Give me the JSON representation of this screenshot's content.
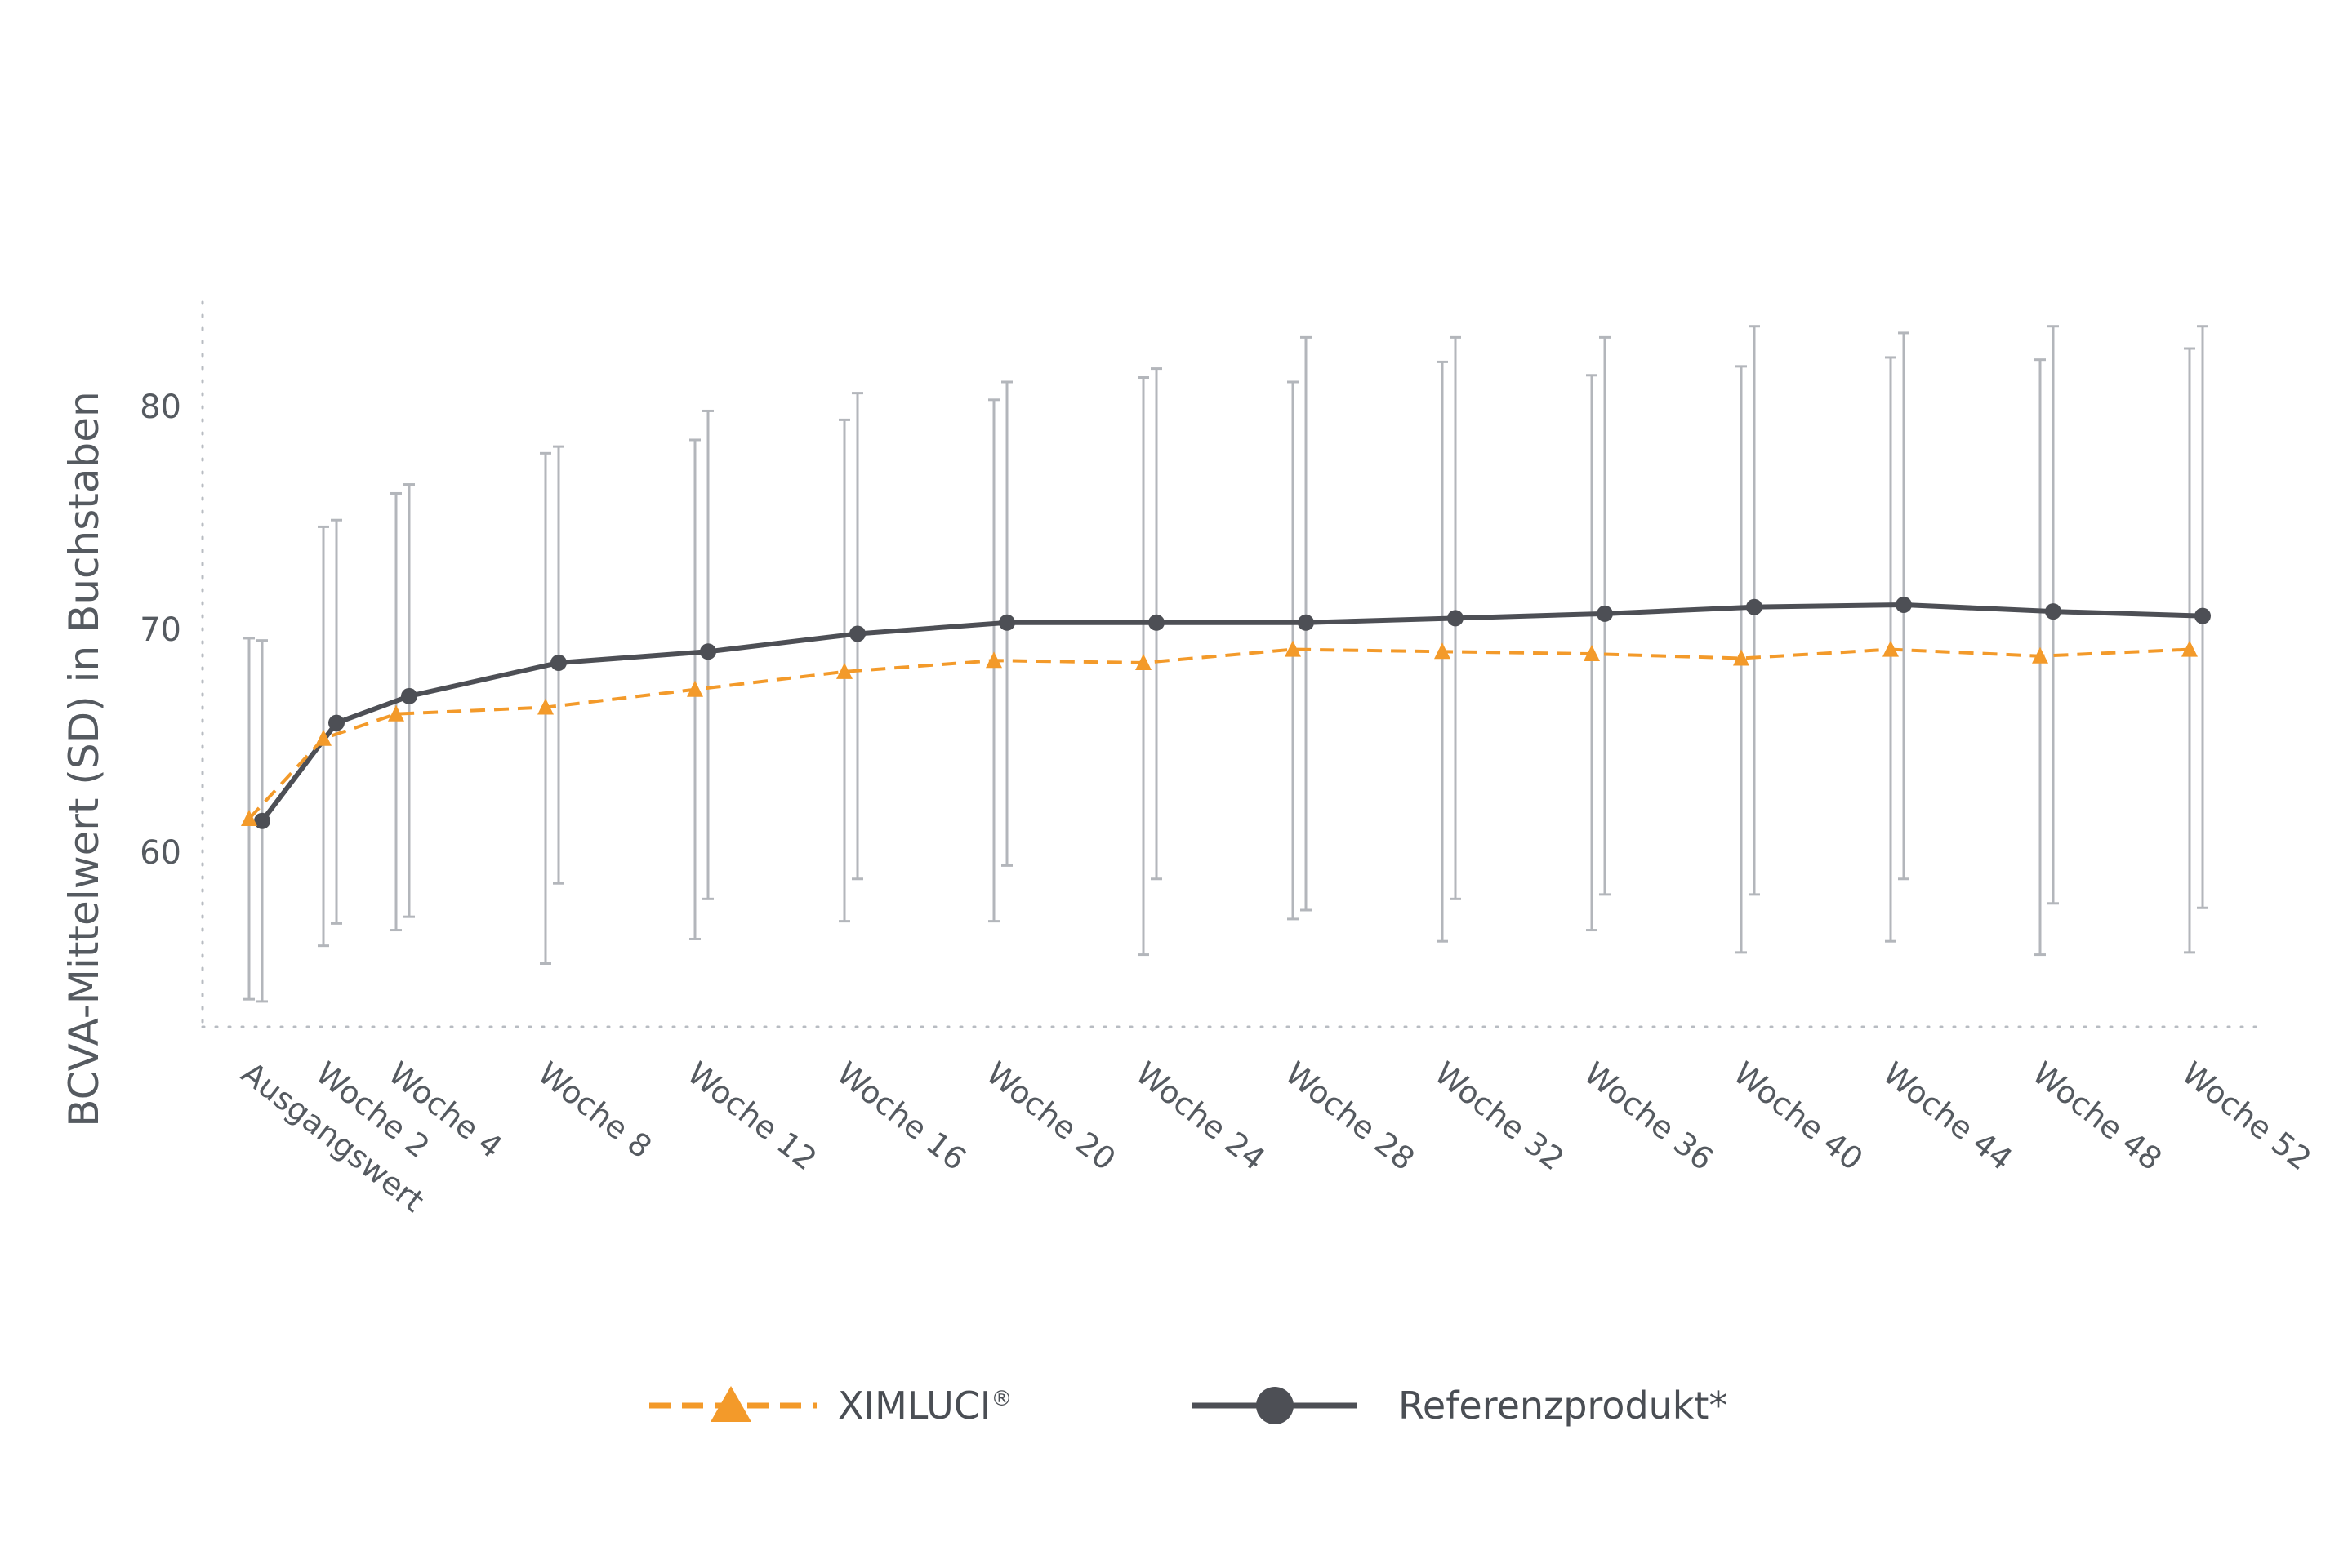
{
  "chart_data": {
    "type": "line",
    "title": "",
    "xlabel": "",
    "ylabel": "BCVA-Mittelwert (SD) in Buchstaben",
    "ylim": [
      52,
      85
    ],
    "y_ticks": [
      "60",
      "70",
      "80"
    ],
    "grid": false,
    "legend_position": "bottom-center",
    "categories": [
      "Ausgangswert",
      "Woche 2",
      "Woche 4",
      "Woche 8",
      "Woche 12",
      "Woche 16",
      "Woche 20",
      "Woche 24",
      "Woche 28",
      "Woche 32",
      "Woche 36",
      "Woche 40",
      "Woche 44",
      "Woche 48",
      "Woche 52"
    ],
    "series": [
      {
        "name": "XIMLUCI",
        "name_suffix": "®",
        "color": "#f39a2a",
        "line_style": "dashed",
        "marker": "triangle",
        "values": [
          61.5,
          65.1,
          66.2,
          66.5,
          67.3,
          68.1,
          68.6,
          68.5,
          69.1,
          69.0,
          68.9,
          68.7,
          69.1,
          68.8,
          69.1
        ],
        "sd_low": [
          53.4,
          55.8,
          56.5,
          55.0,
          56.1,
          56.9,
          56.9,
          55.4,
          57.0,
          56.0,
          56.5,
          55.5,
          56.0,
          55.4,
          55.5
        ],
        "sd_high": [
          69.6,
          74.6,
          76.1,
          77.9,
          78.5,
          79.4,
          80.3,
          81.3,
          81.1,
          82.0,
          81.4,
          81.8,
          82.2,
          82.1,
          82.6
        ]
      },
      {
        "name": "Referenzprodukt*",
        "color": "#4d4f55",
        "line_style": "solid",
        "marker": "circle",
        "values": [
          61.4,
          65.8,
          67.0,
          68.5,
          69.0,
          69.8,
          70.3,
          70.3,
          70.3,
          70.5,
          70.7,
          71.0,
          71.1,
          70.8,
          70.6
        ],
        "sd_low": [
          53.3,
          56.8,
          57.1,
          58.6,
          57.9,
          58.8,
          59.4,
          58.8,
          57.4,
          57.9,
          58.1,
          58.1,
          58.8,
          57.7,
          57.5
        ],
        "sd_high": [
          69.5,
          74.9,
          76.5,
          78.2,
          79.8,
          80.6,
          81.1,
          81.7,
          83.1,
          83.1,
          83.1,
          83.6,
          83.3,
          83.6,
          83.6
        ]
      }
    ]
  }
}
